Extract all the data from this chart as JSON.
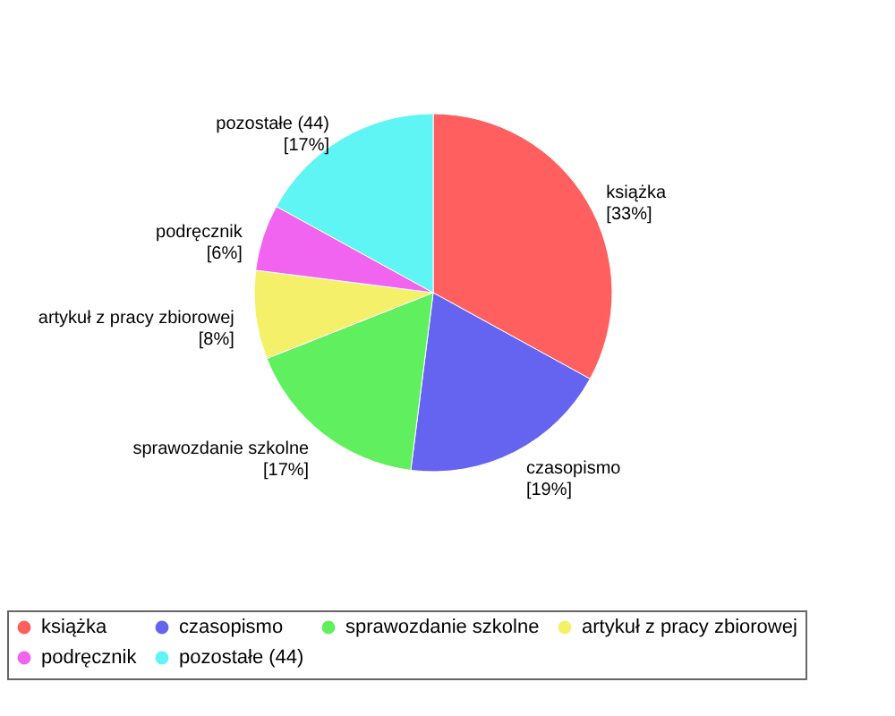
{
  "chart_data": {
    "type": "pie",
    "categories": [
      "książka",
      "czasopismo",
      "sprawozdanie szkolne",
      "artykuł z pracy zbiorowej",
      "podręcznik",
      "pozostałe (44)"
    ],
    "values": [
      33,
      19,
      17,
      8,
      6,
      17
    ],
    "value_labels": [
      "[33%]",
      "[19%]",
      "[17%]",
      "[8%]",
      "[6%]",
      "[17%]"
    ],
    "colors": [
      "#ff5f5f",
      "#6464f0",
      "#5fef5f",
      "#f5f06a",
      "#f064f0",
      "#5ff5f5"
    ],
    "legend": "bottom"
  }
}
